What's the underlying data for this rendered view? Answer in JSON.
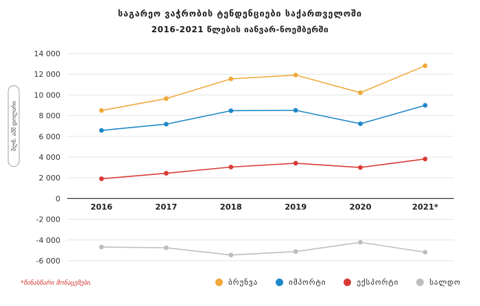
{
  "titles": {
    "line1": "საგარეო ვაჭრობის ტენდენციები საქართველოში",
    "line2": "2016-2021 წლების იანვარ-ნოემბერში"
  },
  "footnote": "*წინასწარი მონაცემები.",
  "colors": {
    "turnover": "#f0a93b",
    "import": "#1e88c8",
    "export": "#d83a35",
    "balance": "#bdbdbd",
    "grid": "#e3e3e3",
    "axis": "#333333"
  },
  "chart_data": {
    "type": "line",
    "ylabel": "მლნ. აშშ დოლარი",
    "ylim": [
      -6000,
      14000
    ],
    "yticks": [
      14000,
      12000,
      10000,
      8000,
      6000,
      4000,
      2000,
      0,
      -2000,
      -4000,
      -6000
    ],
    "ytick_labels": [
      "14 000",
      "12 000",
      "10 000",
      "8 000",
      "6 000",
      "4 000",
      "2 000",
      "0",
      "-2 000",
      "-4 000",
      "-6 000"
    ],
    "categories": [
      "2016",
      "2017",
      "2018",
      "2019",
      "2020",
      "2021*"
    ],
    "grid": true,
    "legend_position": "bottom-right",
    "series": [
      {
        "key": "turnover",
        "name": "ბრუნვა",
        "values": [
          8500,
          9650,
          11550,
          11920,
          10220,
          12820
        ]
      },
      {
        "key": "import",
        "name": "იმპორტი",
        "values": [
          6580,
          7180,
          8480,
          8520,
          7220,
          9000
        ]
      },
      {
        "key": "export",
        "name": "ექსპორტი",
        "values": [
          1910,
          2440,
          3040,
          3410,
          3000,
          3820
        ]
      },
      {
        "key": "balance",
        "name": "სალდო",
        "values": [
          -4680,
          -4750,
          -5450,
          -5120,
          -4220,
          -5180
        ]
      }
    ]
  }
}
